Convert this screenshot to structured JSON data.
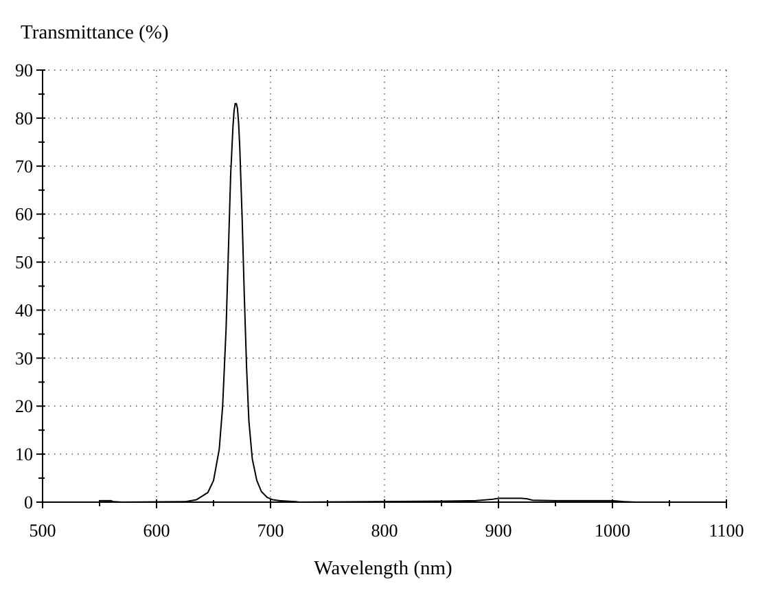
{
  "chart_data": {
    "type": "line",
    "title": "",
    "xlabel": "Wavelength (nm)",
    "ylabel": "Transmittance (%)",
    "xlim": [
      500,
      1100
    ],
    "ylim": [
      0,
      90
    ],
    "x_ticks": [
      500,
      600,
      700,
      800,
      900,
      1000,
      1100
    ],
    "y_ticks": [
      0,
      10,
      20,
      30,
      40,
      50,
      60,
      70,
      80,
      90
    ],
    "x_minor_step": 50,
    "y_minor_step": 5,
    "grid": true,
    "legend": "none",
    "series": [
      {
        "color": "#000000",
        "x": [
          550,
          560,
          562,
          570,
          625,
          635,
          645,
          650,
          655,
          658,
          661,
          663,
          665,
          667,
          668,
          669,
          670,
          671,
          672,
          673,
          675,
          677,
          679,
          681,
          684,
          688,
          692,
          697,
          702,
          708,
          715,
          722,
          725,
          850,
          880,
          895,
          900,
          910,
          920,
          925,
          930,
          950,
          1000,
          1010,
          1020
        ],
        "y": [
          0.3,
          0.3,
          0.1,
          0,
          0.1,
          0.5,
          2,
          4.5,
          11,
          20,
          36,
          52,
          68,
          78,
          81.5,
          83,
          83,
          82,
          79,
          74,
          60,
          43,
          28,
          17,
          9,
          4.5,
          2.2,
          1.0,
          0.5,
          0.3,
          0.2,
          0.1,
          0,
          0.2,
          0.3,
          0.6,
          0.8,
          0.8,
          0.8,
          0.7,
          0.4,
          0.3,
          0.3,
          0.1,
          0
        ]
      }
    ]
  }
}
